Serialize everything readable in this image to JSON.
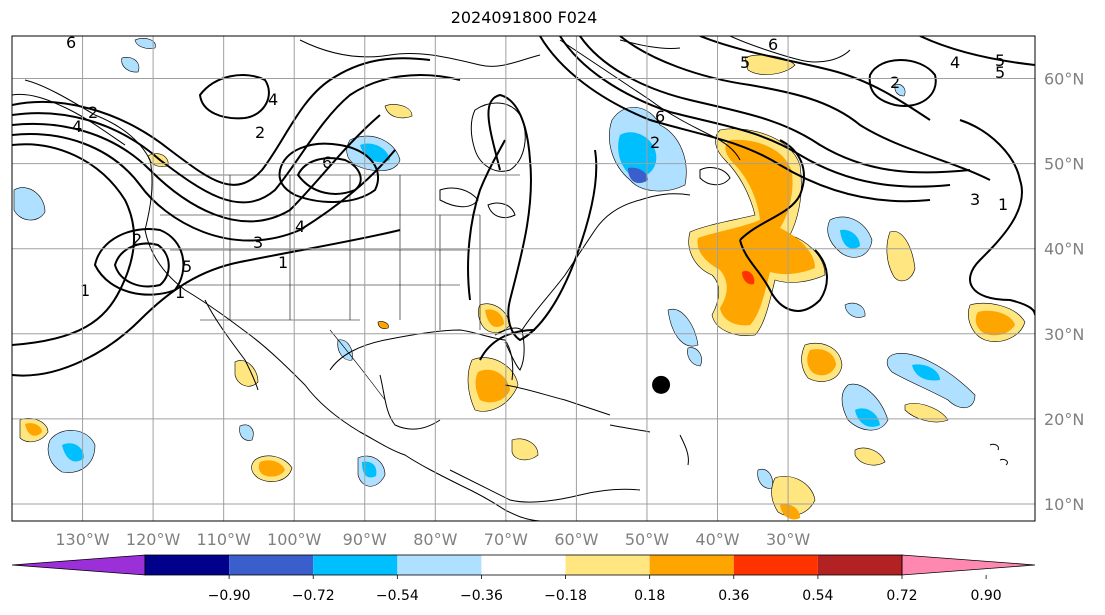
{
  "title": "2024091800 F024",
  "map": {
    "lon_range": [
      -140,
      5
    ],
    "lat_range": [
      8,
      65
    ],
    "gridlines": true,
    "lon_ticks": [
      "130°W",
      "120°W",
      "110°W",
      "100°W",
      "90°W",
      "80°W",
      "70°W",
      "60°W",
      "50°W",
      "40°W",
      "30°W"
    ],
    "lat_ticks": [
      "10°N",
      "20°N",
      "30°N",
      "40°N",
      "50°N",
      "60°N"
    ],
    "contour_labels": [
      "6",
      "6",
      "4",
      "2",
      "4",
      "3",
      "1",
      "1",
      "1",
      "2",
      "5",
      "6",
      "5",
      "6",
      "5",
      "2",
      "4",
      "5",
      "3",
      "1",
      "4",
      "2",
      "2"
    ],
    "marker": {
      "lon": -48,
      "lat": 24,
      "shape": "filled-circle",
      "color": "#000000"
    }
  },
  "colorbar": {
    "ticks": [
      "−0.90",
      "−0.72",
      "−0.54",
      "−0.36",
      "−0.18",
      "0.18",
      "0.36",
      "0.54",
      "0.72",
      "0.90"
    ],
    "colors": [
      "#9b30d8",
      "#00008b",
      "#3a5fcd",
      "#00bfff",
      "#b0e0ff",
      "#ffffff",
      "#ffe680",
      "#ffa500",
      "#ff3300",
      "#b22222",
      "#ff88b0"
    ],
    "extend": "both"
  }
}
